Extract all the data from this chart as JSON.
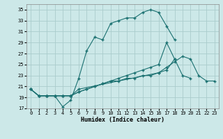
{
  "xlabel": "Humidex (Indice chaleur)",
  "ylabel": "",
  "bg_color": "#cce8e8",
  "grid_color": "#aacccc",
  "line_color": "#1a7070",
  "xlim": [
    0,
    23
  ],
  "ylim": [
    17,
    36
  ],
  "xticks": [
    0,
    1,
    2,
    3,
    4,
    5,
    6,
    7,
    8,
    9,
    10,
    11,
    12,
    13,
    14,
    15,
    16,
    17,
    18,
    19,
    20,
    21,
    22,
    23
  ],
  "yticks": [
    17,
    19,
    21,
    23,
    25,
    27,
    29,
    31,
    33,
    35
  ],
  "curve1": {
    "x": [
      0,
      1,
      2,
      3,
      4,
      5,
      6,
      7,
      8,
      9,
      10,
      11,
      12,
      13,
      14,
      15,
      16,
      17,
      18,
      19,
      20,
      21,
      22,
      23
    ],
    "y": [
      20.5,
      19.3,
      19.3,
      19.3,
      17.3,
      18.5,
      22.5,
      27.5,
      30.0,
      29.5,
      32.5,
      33.0,
      33.5,
      33.5,
      34.5,
      35.0,
      34.5,
      32.0,
      29.5,
      null,
      null,
      null,
      null,
      null
    ]
  },
  "curve2": {
    "x": [
      0,
      1,
      2,
      3,
      4,
      5,
      6,
      7,
      8,
      9,
      10,
      11,
      12,
      13,
      14,
      15,
      16,
      17,
      18,
      19,
      20,
      21,
      22,
      23
    ],
    "y": [
      20.5,
      19.3,
      19.3,
      19.3,
      19.3,
      19.3,
      20.0,
      20.5,
      21.0,
      21.5,
      22.0,
      22.5,
      23.0,
      23.5,
      24.0,
      24.5,
      25.0,
      29.0,
      26.0,
      null,
      null,
      null,
      null,
      null
    ]
  },
  "curve3": {
    "x": [
      0,
      1,
      2,
      3,
      4,
      5,
      6,
      7,
      8,
      9,
      10,
      11,
      12,
      13,
      14,
      15,
      16,
      17,
      18,
      19,
      20,
      21,
      22,
      23
    ],
    "y": [
      20.5,
      19.3,
      19.3,
      19.3,
      19.3,
      19.3,
      20.0,
      20.5,
      21.0,
      21.5,
      22.0,
      22.0,
      22.5,
      22.5,
      23.0,
      23.0,
      23.5,
      24.0,
      26.0,
      23.0,
      22.5,
      null,
      null,
      null
    ]
  },
  "curve4": {
    "x": [
      0,
      1,
      2,
      3,
      4,
      5,
      6,
      16,
      17,
      18,
      19,
      20,
      21,
      22,
      23
    ],
    "y": [
      20.5,
      19.3,
      19.3,
      19.3,
      19.3,
      19.3,
      20.5,
      23.5,
      24.5,
      25.5,
      26.5,
      26.0,
      23.0,
      22.0,
      22.0
    ]
  }
}
